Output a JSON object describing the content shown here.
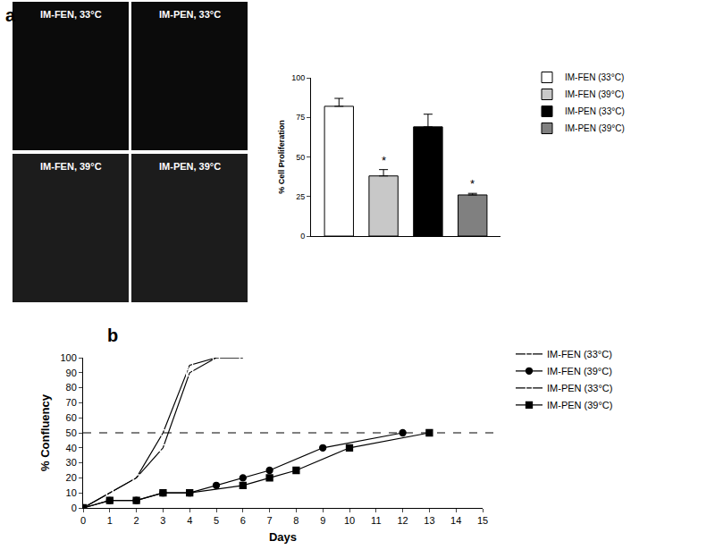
{
  "panel_labels": [
    "a",
    "b"
  ],
  "images": [
    {
      "label": "IM-FEN, 33°C"
    },
    {
      "label": "IM-PEN, 33°C"
    },
    {
      "label": "IM-FEN, 39°C"
    },
    {
      "label": "IM-PEN, 39°C"
    }
  ],
  "chart_data": [
    {
      "type": "bar",
      "y_label": "% Cell Proliferation",
      "categories": [
        null
      ],
      "series": [
        {
          "name": "IM-FEN (33°C)",
          "color": "#ffffff",
          "values": [
            82
          ],
          "error": [
            5
          ]
        },
        {
          "name": "IM-FEN (39°C)",
          "color": "#c8c8c8",
          "values": [
            38
          ],
          "error": [
            4
          ],
          "annotation": "*"
        },
        {
          "name": "IM-PEN (33°C)",
          "color": "#000000",
          "values": [
            69
          ],
          "error": [
            8
          ]
        },
        {
          "name": "IM-PEN (39°C)",
          "color": "#808080",
          "values": [
            26
          ],
          "error": [
            1
          ],
          "annotation": "*"
        }
      ],
      "ylim": [
        0,
        100
      ],
      "yticks": [
        0,
        25,
        50,
        75,
        100
      ],
      "tick_labels": "y",
      "grid": false,
      "legend": "right"
    },
    {
      "type": "line",
      "x_label": "Days",
      "y_label": "% Confluency",
      "series": [
        {
          "name": "IM-FEN (33°C)",
          "color": "#000000",
          "marker": "circle-open",
          "x": [
            0,
            1,
            2,
            3,
            4,
            5,
            6
          ],
          "values": [
            0,
            10,
            20,
            50,
            95,
            100,
            100
          ]
        },
        {
          "name": "IM-FEN (39°C)",
          "color": "#000000",
          "marker": "circle",
          "x": [
            0,
            1,
            2,
            3,
            4,
            5,
            6,
            7,
            9,
            12
          ],
          "values": [
            0,
            5,
            5,
            10,
            10,
            15,
            20,
            25,
            40,
            50
          ]
        },
        {
          "name": "IM-PEN (33°C)",
          "color": "#000000",
          "marker": "square-open",
          "x": [
            0,
            1,
            2,
            3,
            4,
            5,
            6
          ],
          "values": [
            0,
            10,
            20,
            40,
            90,
            100,
            100
          ]
        },
        {
          "name": "IM-PEN (39°C)",
          "color": "#000000",
          "marker": "square",
          "x": [
            0,
            1,
            2,
            3,
            4,
            6,
            7,
            8,
            10,
            13
          ],
          "values": [
            0,
            5,
            5,
            10,
            10,
            15,
            20,
            25,
            40,
            50
          ]
        }
      ],
      "xlim": [
        0,
        15
      ],
      "xticks": [
        0,
        1,
        2,
        3,
        4,
        5,
        6,
        7,
        8,
        9,
        10,
        11,
        12,
        13,
        14,
        15
      ],
      "ylim": [
        0,
        100
      ],
      "yticks": [
        0,
        10,
        20,
        30,
        40,
        50,
        60,
        70,
        80,
        90,
        100
      ],
      "reference_line": {
        "y": 50,
        "line_style": "dash"
      },
      "grid": false,
      "legend": "right"
    }
  ]
}
